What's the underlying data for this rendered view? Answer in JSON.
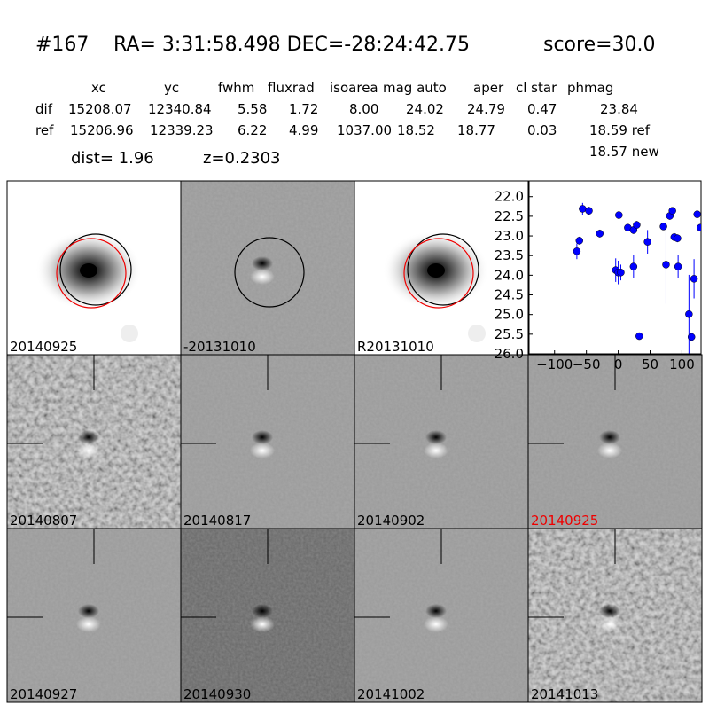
{
  "header": {
    "id": "#167",
    "coords": "RA= 3:31:58.498 DEC=-28:24:42.75",
    "score": "score=30.0"
  },
  "table": {
    "columns": [
      "xc",
      "yc",
      "fwhm",
      "fluxrad",
      "isoarea",
      "mag auto",
      "aper",
      "cl star",
      "phmag"
    ],
    "rows": [
      [
        "dif",
        "15208.07",
        "12340.84",
        "5.58",
        "1.72",
        "8.00",
        "24.02",
        "24.79",
        "0.47",
        "23.84"
      ],
      [
        "ref",
        "15206.96",
        "12339.23",
        "6.22",
        "4.99",
        "1037.00",
        "18.52",
        "18.77",
        "0.03",
        "18.59 ref"
      ]
    ],
    "extra": "18.57 new"
  },
  "dist": "dist=  1.96",
  "redshift": "z=0.2303",
  "panels": [
    "20140925",
    "-20131010",
    "R20131010",
    "20140807",
    "20140817",
    "20140902",
    "20140925",
    "20140927",
    "20140930",
    "20141002",
    "20141013"
  ],
  "chart_data": {
    "type": "scatter",
    "color": "#0000ff",
    "x": [
      -65,
      -61,
      -56,
      -46,
      -29,
      1,
      -4,
      0,
      4,
      15,
      24,
      24,
      29,
      33,
      46,
      71,
      75,
      81,
      85,
      88,
      93,
      94,
      111,
      115,
      119,
      124,
      129
    ],
    "values": [
      23.39,
      23.12,
      22.31,
      22.36,
      22.94,
      22.47,
      23.87,
      23.93,
      23.93,
      22.79,
      23.78,
      22.85,
      22.72,
      25.55,
      23.15,
      22.76,
      23.73,
      22.49,
      22.36,
      23.03,
      23.06,
      23.78,
      24.99,
      25.57,
      24.09,
      22.45,
      22.79
    ],
    "errors": [
      0.2,
      0.1,
      0.15,
      0.1,
      0.1,
      0.1,
      0.3,
      0.3,
      0.2,
      0.05,
      0.3,
      0.1,
      0.1,
      0.05,
      0.3,
      0.05,
      1.0,
      0.1,
      0.05,
      0.1,
      0.1,
      0.3,
      1.0,
      0.1,
      0.5,
      0.05,
      0.05
    ],
    "xlim": [
      -140,
      130
    ],
    "ylim": [
      26.0,
      21.6
    ],
    "xticks": [
      {
        "value": -100,
        "label": "−100"
      },
      {
        "value": -50,
        "label": "−50"
      },
      0,
      50,
      100
    ],
    "yticks": [
      {
        "value": 22.0,
        "label": "22.0"
      },
      {
        "value": 22.5,
        "label": "22.5"
      },
      {
        "value": 23.0,
        "label": "23.0"
      },
      {
        "value": 23.5,
        "label": "23.5"
      },
      {
        "value": 24.0,
        "label": "24.0"
      },
      {
        "value": 24.5,
        "label": "24.5"
      },
      {
        "value": 25.0,
        "label": "25.0"
      },
      {
        "value": 25.5,
        "label": "25.5"
      },
      {
        "value": 26.0,
        "label": "26.0"
      }
    ]
  }
}
